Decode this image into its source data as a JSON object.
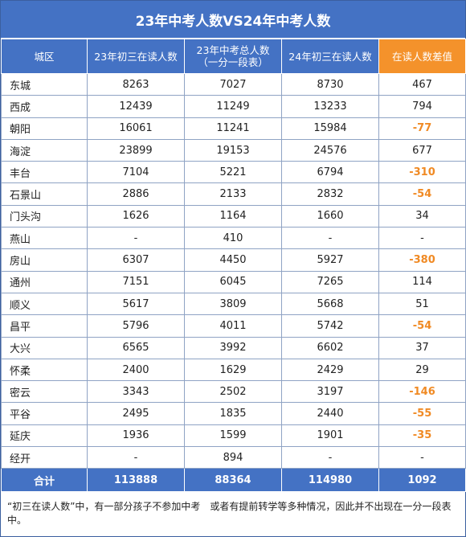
{
  "title": "23年中考人数VS24年中考人数",
  "headers": {
    "city": "城区",
    "g9_2023": "23年初三在读人数",
    "exam_2023_line1": "23年中考总人数",
    "exam_2023_line2": "（一分一段表）",
    "g9_2024": "24年初三在读人数",
    "diff": "在读人数差值"
  },
  "rows": [
    {
      "city": "东城",
      "g9_2023": "8263",
      "exam_2023": "7027",
      "g9_2024": "8730",
      "diff": "467",
      "neg": false
    },
    {
      "city": "西成",
      "g9_2023": "12439",
      "exam_2023": "11249",
      "g9_2024": "13233",
      "diff": "794",
      "neg": false
    },
    {
      "city": "朝阳",
      "g9_2023": "16061",
      "exam_2023": "11241",
      "g9_2024": "15984",
      "diff": "-77",
      "neg": true
    },
    {
      "city": "海淀",
      "g9_2023": "23899",
      "exam_2023": "19153",
      "g9_2024": "24576",
      "diff": "677",
      "neg": false
    },
    {
      "city": "丰台",
      "g9_2023": "7104",
      "exam_2023": "5221",
      "g9_2024": "6794",
      "diff": "-310",
      "neg": true
    },
    {
      "city": "石景山",
      "g9_2023": "2886",
      "exam_2023": "2133",
      "g9_2024": "2832",
      "diff": "-54",
      "neg": true
    },
    {
      "city": "门头沟",
      "g9_2023": "1626",
      "exam_2023": "1164",
      "g9_2024": "1660",
      "diff": "34",
      "neg": false
    },
    {
      "city": "燕山",
      "g9_2023": "-",
      "exam_2023": "410",
      "g9_2024": "-",
      "diff": "-",
      "neg": false
    },
    {
      "city": "房山",
      "g9_2023": "6307",
      "exam_2023": "4450",
      "g9_2024": "5927",
      "diff": "-380",
      "neg": true
    },
    {
      "city": "通州",
      "g9_2023": "7151",
      "exam_2023": "6045",
      "g9_2024": "7265",
      "diff": "114",
      "neg": false
    },
    {
      "city": "顺义",
      "g9_2023": "5617",
      "exam_2023": "3809",
      "g9_2024": "5668",
      "diff": "51",
      "neg": false
    },
    {
      "city": "昌平",
      "g9_2023": "5796",
      "exam_2023": "4011",
      "g9_2024": "5742",
      "diff": "-54",
      "neg": true
    },
    {
      "city": "大兴",
      "g9_2023": "6565",
      "exam_2023": "3992",
      "g9_2024": "6602",
      "diff": "37",
      "neg": false
    },
    {
      "city": "怀柔",
      "g9_2023": "2400",
      "exam_2023": "1629",
      "g9_2024": "2429",
      "diff": "29",
      "neg": false
    },
    {
      "city": "密云",
      "g9_2023": "3343",
      "exam_2023": "2502",
      "g9_2024": "3197",
      "diff": "-146",
      "neg": true
    },
    {
      "city": "平谷",
      "g9_2023": "2495",
      "exam_2023": "1835",
      "g9_2024": "2440",
      "diff": "-55",
      "neg": true
    },
    {
      "city": "延庆",
      "g9_2023": "1936",
      "exam_2023": "1599",
      "g9_2024": "1901",
      "diff": "-35",
      "neg": true
    },
    {
      "city": "经开",
      "g9_2023": "-",
      "exam_2023": "894",
      "g9_2024": "-",
      "diff": "-",
      "neg": false
    }
  ],
  "total": {
    "label": "合计",
    "g9_2023": "113888",
    "exam_2023": "88364",
    "g9_2024": "114980",
    "diff": "1092"
  },
  "note": "“初三在读人数”中，有一部分孩子不参加中考　或者有提前转学等多种情况，因此并不出现在一分一段表中。",
  "colors": {
    "header_blue": "#4472c4",
    "diff_header_orange": "#f4922b",
    "negative_orange": "#f08a24"
  }
}
